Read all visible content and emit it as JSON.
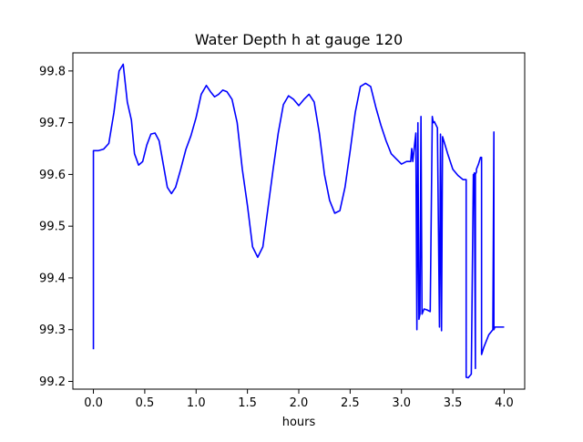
{
  "chart_data": {
    "type": "line",
    "title": "Water Depth h at gauge 120",
    "xlabel": "hours",
    "ylabel": "",
    "xlim": [
      -0.2,
      4.2
    ],
    "ylim": [
      99.185,
      99.835
    ],
    "xticks": [
      0.0,
      0.5,
      1.0,
      1.5,
      2.0,
      2.5,
      3.0,
      3.5,
      4.0
    ],
    "xtick_labels": [
      "0.0",
      "0.5",
      "1.0",
      "1.5",
      "2.0",
      "2.5",
      "3.0",
      "3.5",
      "4.0"
    ],
    "yticks": [
      99.2,
      99.3,
      99.4,
      99.5,
      99.6,
      99.7,
      99.8
    ],
    "ytick_labels": [
      "99.2",
      "99.3",
      "99.4",
      "99.5",
      "99.6",
      "99.7",
      "99.8"
    ],
    "grid": false,
    "series": [
      {
        "color": "#0000ff",
        "x": [
          0.0,
          0.0,
          0.05,
          0.1,
          0.15,
          0.2,
          0.25,
          0.29,
          0.33,
          0.37,
          0.4,
          0.44,
          0.48,
          0.52,
          0.56,
          0.6,
          0.64,
          0.68,
          0.72,
          0.76,
          0.8,
          0.85,
          0.9,
          0.95,
          1.0,
          1.05,
          1.1,
          1.14,
          1.18,
          1.22,
          1.26,
          1.3,
          1.35,
          1.4,
          1.45,
          1.5,
          1.55,
          1.6,
          1.65,
          1.7,
          1.75,
          1.8,
          1.85,
          1.9,
          1.95,
          2.0,
          2.05,
          2.1,
          2.15,
          2.2,
          2.25,
          2.3,
          2.35,
          2.4,
          2.45,
          2.5,
          2.55,
          2.6,
          2.65,
          2.7,
          2.75,
          2.8,
          2.85,
          2.9,
          2.95,
          3.0,
          3.05,
          3.09,
          3.1,
          3.11,
          3.14,
          3.15,
          3.16,
          3.17,
          3.18,
          3.19,
          3.2,
          3.21,
          3.22,
          3.25,
          3.28,
          3.3,
          3.31,
          3.32,
          3.35,
          3.37,
          3.38,
          3.39,
          3.4,
          3.42,
          3.45,
          3.5,
          3.55,
          3.6,
          3.63,
          3.63,
          3.65,
          3.68,
          3.7,
          3.7,
          3.71,
          3.72,
          3.72,
          3.73,
          3.73,
          3.75,
          3.77,
          3.78,
          3.78,
          3.8,
          3.85,
          3.89,
          3.9,
          3.9,
          3.91,
          3.95,
          4.0
        ],
        "y": [
          99.262,
          99.646,
          99.646,
          99.649,
          99.66,
          99.72,
          99.8,
          99.813,
          99.74,
          99.705,
          99.64,
          99.618,
          99.625,
          99.657,
          99.678,
          99.68,
          99.665,
          99.62,
          99.575,
          99.563,
          99.575,
          99.61,
          99.648,
          99.675,
          99.71,
          99.755,
          99.772,
          99.76,
          99.75,
          99.755,
          99.763,
          99.76,
          99.745,
          99.7,
          99.61,
          99.54,
          99.46,
          99.44,
          99.46,
          99.535,
          99.61,
          99.68,
          99.735,
          99.752,
          99.745,
          99.733,
          99.745,
          99.755,
          99.74,
          99.68,
          99.6,
          99.55,
          99.525,
          99.53,
          99.575,
          99.645,
          99.72,
          99.77,
          99.776,
          99.77,
          99.73,
          99.695,
          99.665,
          99.64,
          99.63,
          99.62,
          99.625,
          99.625,
          99.65,
          99.625,
          99.68,
          99.3,
          99.7,
          99.32,
          99.33,
          99.712,
          99.33,
          99.335,
          99.34,
          99.338,
          99.335,
          99.712,
          99.7,
          99.702,
          99.69,
          99.305,
          99.678,
          99.298,
          99.673,
          99.66,
          99.64,
          99.61,
          99.598,
          99.59,
          99.59,
          99.208,
          99.207,
          99.214,
          99.6,
          99.58,
          99.603,
          99.225,
          99.6,
          99.605,
          99.61,
          99.62,
          99.633,
          99.633,
          99.252,
          99.265,
          99.29,
          99.3,
          99.682,
          99.3,
          99.305,
          99.305,
          99.305
        ]
      }
    ]
  }
}
